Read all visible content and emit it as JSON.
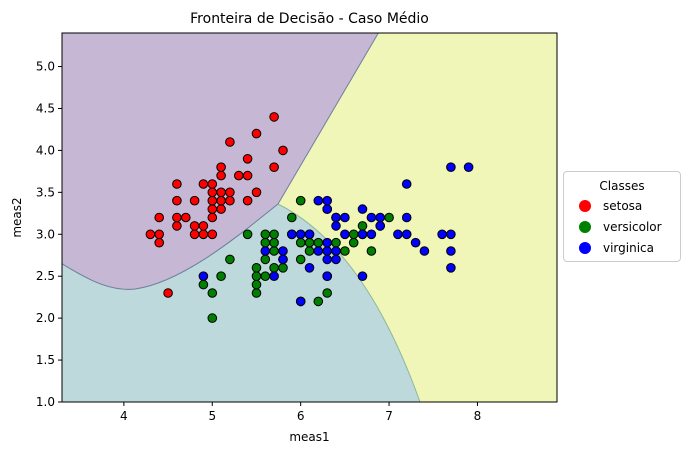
{
  "chart_data": {
    "type": "scatter",
    "title": "Fronteira de Decisão - Caso Médio",
    "xlabel": "meas1",
    "ylabel": "meas2",
    "xlim": [
      3.3,
      8.9
    ],
    "ylim": [
      1.0,
      5.4
    ],
    "xticks": [
      "4",
      "5",
      "6",
      "7",
      "8"
    ],
    "yticks": [
      "1.0",
      "1.5",
      "2.0",
      "2.5",
      "3.0",
      "3.5",
      "4.0",
      "4.5",
      "5.0"
    ],
    "grid": false,
    "legend_title": "Classes",
    "legend_position": "right",
    "regions": [
      {
        "class": "setosa",
        "color": "#c6b8d4"
      },
      {
        "class": "versicolor",
        "color": "#bed9dc"
      },
      {
        "class": "virginica",
        "color": "#f0f5b8"
      }
    ],
    "series": [
      {
        "name": "setosa",
        "color": "#ff0000",
        "points": [
          [
            4.3,
            3.0
          ],
          [
            4.4,
            2.9
          ],
          [
            4.4,
            3.0
          ],
          [
            4.4,
            3.2
          ],
          [
            4.5,
            2.3
          ],
          [
            4.6,
            3.1
          ],
          [
            4.6,
            3.2
          ],
          [
            4.6,
            3.4
          ],
          [
            4.6,
            3.6
          ],
          [
            4.7,
            3.2
          ],
          [
            4.8,
            3.0
          ],
          [
            4.8,
            3.1
          ],
          [
            4.8,
            3.4
          ],
          [
            4.9,
            3.0
          ],
          [
            4.9,
            3.1
          ],
          [
            4.9,
            3.6
          ],
          [
            5.0,
            3.0
          ],
          [
            5.0,
            3.2
          ],
          [
            5.0,
            3.3
          ],
          [
            5.0,
            3.4
          ],
          [
            5.0,
            3.5
          ],
          [
            5.0,
            3.6
          ],
          [
            5.1,
            3.3
          ],
          [
            5.1,
            3.4
          ],
          [
            5.1,
            3.5
          ],
          [
            5.1,
            3.7
          ],
          [
            5.1,
            3.8
          ],
          [
            5.2,
            3.4
          ],
          [
            5.2,
            3.5
          ],
          [
            5.2,
            4.1
          ],
          [
            5.3,
            3.7
          ],
          [
            5.4,
            3.4
          ],
          [
            5.4,
            3.7
          ],
          [
            5.4,
            3.9
          ],
          [
            5.5,
            3.5
          ],
          [
            5.5,
            4.2
          ],
          [
            5.7,
            3.8
          ],
          [
            5.7,
            4.4
          ],
          [
            5.8,
            4.0
          ]
        ]
      },
      {
        "name": "versicolor",
        "color": "#008000",
        "points": [
          [
            4.9,
            2.4
          ],
          [
            5.0,
            2.0
          ],
          [
            5.0,
            2.3
          ],
          [
            5.1,
            2.5
          ],
          [
            5.2,
            2.7
          ],
          [
            5.4,
            3.0
          ],
          [
            5.5,
            2.3
          ],
          [
            5.5,
            2.4
          ],
          [
            5.5,
            2.5
          ],
          [
            5.5,
            2.6
          ],
          [
            5.6,
            2.5
          ],
          [
            5.6,
            2.7
          ],
          [
            5.6,
            2.9
          ],
          [
            5.6,
            3.0
          ],
          [
            5.7,
            2.6
          ],
          [
            5.7,
            2.8
          ],
          [
            5.7,
            2.9
          ],
          [
            5.7,
            3.0
          ],
          [
            5.8,
            2.6
          ],
          [
            5.8,
            2.7
          ],
          [
            5.9,
            3.0
          ],
          [
            5.9,
            3.2
          ],
          [
            6.0,
            2.2
          ],
          [
            6.0,
            2.7
          ],
          [
            6.0,
            2.9
          ],
          [
            6.0,
            3.4
          ],
          [
            6.1,
            2.8
          ],
          [
            6.1,
            2.9
          ],
          [
            6.1,
            3.0
          ],
          [
            6.2,
            2.2
          ],
          [
            6.2,
            2.9
          ],
          [
            6.3,
            2.3
          ],
          [
            6.3,
            2.5
          ],
          [
            6.3,
            3.3
          ],
          [
            6.4,
            2.9
          ],
          [
            6.4,
            3.2
          ],
          [
            6.5,
            2.8
          ],
          [
            6.6,
            2.9
          ],
          [
            6.6,
            3.0
          ],
          [
            6.7,
            3.0
          ],
          [
            6.7,
            3.1
          ],
          [
            6.8,
            2.8
          ],
          [
            6.9,
            3.1
          ],
          [
            7.0,
            3.2
          ]
        ]
      },
      {
        "name": "virginica",
        "color": "#0000ff",
        "points": [
          [
            4.9,
            2.5
          ],
          [
            5.6,
            2.8
          ],
          [
            5.7,
            2.5
          ],
          [
            5.8,
            2.7
          ],
          [
            5.8,
            2.8
          ],
          [
            5.9,
            3.0
          ],
          [
            6.0,
            2.2
          ],
          [
            6.0,
            3.0
          ],
          [
            6.1,
            2.6
          ],
          [
            6.1,
            3.0
          ],
          [
            6.2,
            2.8
          ],
          [
            6.2,
            3.4
          ],
          [
            6.3,
            2.5
          ],
          [
            6.3,
            2.7
          ],
          [
            6.3,
            2.8
          ],
          [
            6.3,
            2.9
          ],
          [
            6.3,
            3.3
          ],
          [
            6.3,
            3.4
          ],
          [
            6.4,
            2.7
          ],
          [
            6.4,
            2.8
          ],
          [
            6.4,
            3.1
          ],
          [
            6.4,
            3.2
          ],
          [
            6.5,
            3.0
          ],
          [
            6.5,
            3.2
          ],
          [
            6.7,
            2.5
          ],
          [
            6.7,
            3.0
          ],
          [
            6.7,
            3.3
          ],
          [
            6.8,
            3.0
          ],
          [
            6.8,
            3.2
          ],
          [
            6.9,
            3.1
          ],
          [
            6.9,
            3.2
          ],
          [
            7.1,
            3.0
          ],
          [
            7.2,
            3.0
          ],
          [
            7.2,
            3.2
          ],
          [
            7.2,
            3.6
          ],
          [
            7.3,
            2.9
          ],
          [
            7.4,
            2.8
          ],
          [
            7.6,
            3.0
          ],
          [
            7.7,
            2.6
          ],
          [
            7.7,
            2.8
          ],
          [
            7.7,
            3.0
          ],
          [
            7.7,
            3.8
          ],
          [
            7.9,
            3.8
          ]
        ]
      }
    ]
  }
}
